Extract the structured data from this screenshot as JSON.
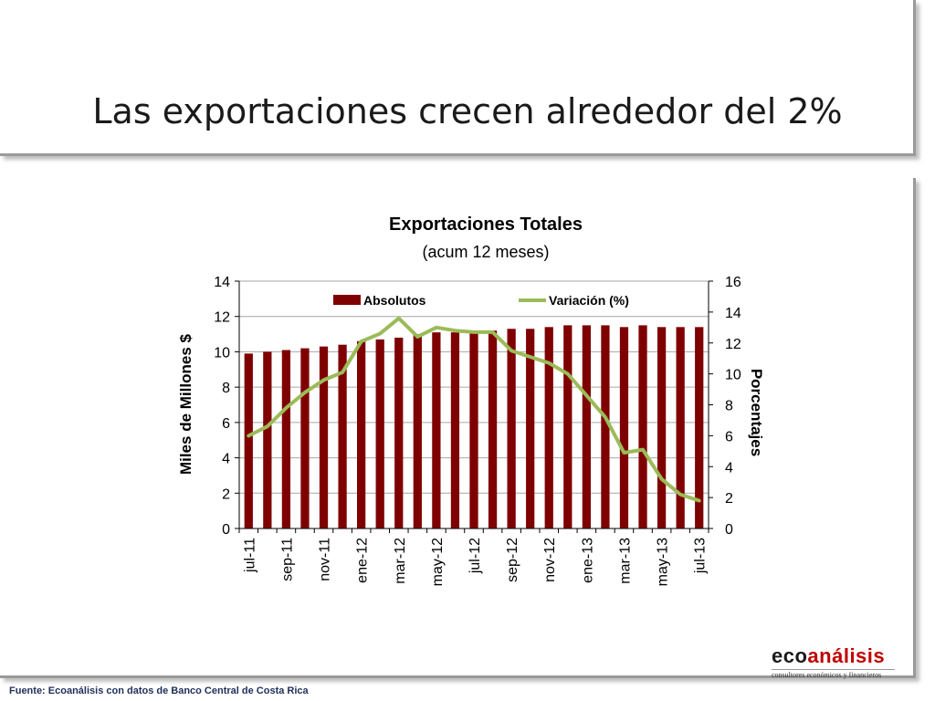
{
  "slide": {
    "title": "Las exportaciones crecen alrededor del 2%",
    "source": "Fuente: Ecoanálisis con datos de Banco  Central de Costa Rica"
  },
  "logo": {
    "eco": "eco",
    "analisis": "análisis",
    "tagline": "consultores económicos y financieros"
  },
  "colors": {
    "bars": "#7f0000",
    "line": "#9bbb59",
    "logo_accent": "#c00000"
  },
  "chart_data": {
    "type": "bar",
    "title": "Exportaciones Totales",
    "subtitle": "(acum 12 meses)",
    "ylabel": "Miles de Millones $",
    "y2label": "Porcentajes",
    "ylim": [
      0,
      14
    ],
    "y2lim": [
      0,
      16
    ],
    "yticks": [
      "0",
      "2",
      "4",
      "6",
      "8",
      "10",
      "12",
      "14"
    ],
    "y2ticks": [
      "0",
      "2",
      "4",
      "6",
      "8",
      "10",
      "12",
      "14",
      "16"
    ],
    "grid": true,
    "legend_position": "top",
    "categories": [
      "jul-11",
      "ago-11",
      "sep-11",
      "oct-11",
      "nov-11",
      "dic-11",
      "ene-12",
      "feb-12",
      "mar-12",
      "abr-12",
      "may-12",
      "jun-12",
      "jul-12",
      "ago-12",
      "sep-12",
      "oct-12",
      "nov-12",
      "dic-12",
      "ene-13",
      "feb-13",
      "mar-13",
      "abr-13",
      "may-13",
      "jun-13",
      "jul-13"
    ],
    "xtick_labels": [
      "jul-11",
      "sep-11",
      "nov-11",
      "ene-12",
      "mar-12",
      "may-12",
      "jul-12",
      "sep-12",
      "nov-12",
      "ene-13",
      "mar-13",
      "may-13",
      "jul-13"
    ],
    "series": [
      {
        "name": "Absolutos",
        "type": "bar",
        "axis": "left",
        "values": [
          9.9,
          10.0,
          10.1,
          10.2,
          10.3,
          10.4,
          10.6,
          10.7,
          10.8,
          11.0,
          11.1,
          11.1,
          11.2,
          11.2,
          11.3,
          11.3,
          11.4,
          11.5,
          11.5,
          11.5,
          11.4,
          11.5,
          11.4,
          11.4,
          11.4
        ]
      },
      {
        "name": "Variación (%)",
        "type": "line",
        "axis": "right",
        "values": [
          6.0,
          6.6,
          7.8,
          8.8,
          9.6,
          10.1,
          12.1,
          12.6,
          13.6,
          12.4,
          13.0,
          12.8,
          12.7,
          12.7,
          11.5,
          11.1,
          10.7,
          10.0,
          8.6,
          7.2,
          4.9,
          5.1,
          3.2,
          2.2,
          1.8
        ]
      }
    ]
  }
}
